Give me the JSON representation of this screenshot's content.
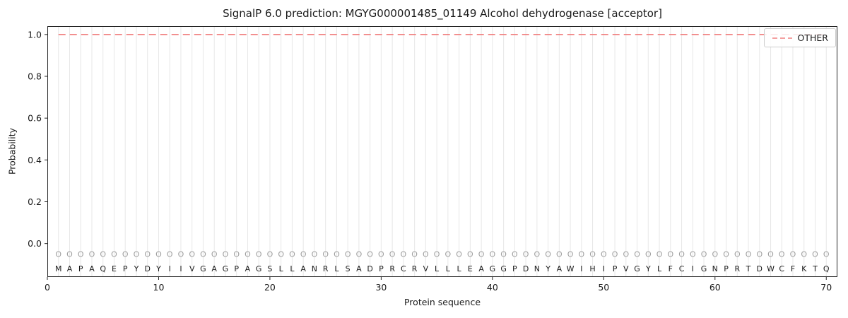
{
  "title": "SignalP 6.0 prediction: MGYG000001485_01149 Alcohol dehydrogenase [acceptor]",
  "legend": {
    "other_label": "OTHER"
  },
  "axes": {
    "xlabel": "Protein sequence",
    "ylabel": "Probability",
    "x_ticks": [
      "0",
      "10",
      "20",
      "30",
      "40",
      "50",
      "60",
      "70"
    ],
    "y_ticks": [
      "0.0",
      "0.2",
      "0.4",
      "0.6",
      "0.8",
      "1.0"
    ],
    "x_range": [
      0,
      71
    ],
    "y_range": [
      -0.16,
      1.04
    ]
  },
  "colors": {
    "grid": "#e7e7e7",
    "spine": "#262626",
    "text": "#1a1a1a",
    "marker": "#9e9e9e",
    "other_line": "#f08080"
  },
  "chart_data": {
    "type": "line",
    "title": "SignalP 6.0 prediction: MGYG000001485_01149 Alcohol dehydrogenase [acceptor]",
    "xlabel": "Protein sequence",
    "ylabel": "Probability",
    "xlim": [
      0,
      71
    ],
    "ylim": [
      -0.16,
      1.04
    ],
    "grid": "vertical gridline at every residue position",
    "legend_position": "upper right",
    "series": [
      {
        "name": "OTHER",
        "style": "dashed",
        "color": "#f08080",
        "x": [
          1,
          70
        ],
        "y": [
          1.0,
          1.0
        ],
        "note": "constant probability 1.0 across all 70 residues"
      }
    ],
    "sequence": "MAPAQEPYDYIIVGAGPAGSLLANRLSADPRCRVLLLEAGGPDNYAWIHIPVGYLFCIGNPRTDWCFKTQ",
    "marker_row": {
      "char": "O",
      "y": -0.05
    },
    "letter_row_y": -0.12
  }
}
